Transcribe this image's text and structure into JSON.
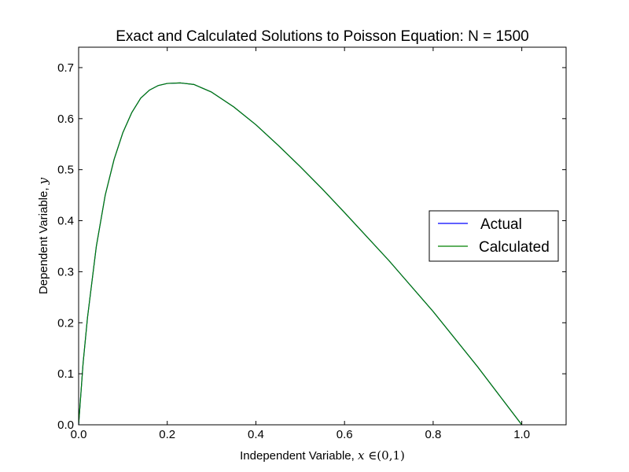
{
  "chart_data": {
    "type": "line",
    "title": "Exact and Calculated Solutions to Poisson Equation: N = 1500",
    "xlabel": {
      "text": "Independent Variable, ",
      "math_var": "x",
      "math_rest": " ∈(0,1)"
    },
    "ylabel": {
      "text": "Dependent Variable, ",
      "math_var": "y"
    },
    "xlim": [
      0.0,
      1.1
    ],
    "ylim": [
      0.0,
      0.74
    ],
    "xticks": [
      0.0,
      0.2,
      0.4,
      0.6,
      0.8,
      1.0
    ],
    "xtick_labels": [
      "0.0",
      "0.2",
      "0.4",
      "0.6",
      "0.8",
      "1.0"
    ],
    "yticks": [
      0.0,
      0.1,
      0.2,
      0.3,
      0.4,
      0.5,
      0.6,
      0.7
    ],
    "ytick_labels": [
      "0.0",
      "0.1",
      "0.2",
      "0.3",
      "0.4",
      "0.5",
      "0.6",
      "0.7"
    ],
    "grid": false,
    "legend_position": "center-right",
    "x": [
      0.0,
      0.01,
      0.02,
      0.04,
      0.06,
      0.08,
      0.1,
      0.12,
      0.14,
      0.16,
      0.18,
      0.2,
      0.23,
      0.26,
      0.3,
      0.35,
      0.4,
      0.45,
      0.5,
      0.55,
      0.6,
      0.7,
      0.8,
      0.9,
      1.0
    ],
    "series": [
      {
        "name": "Actual",
        "color": "#0000ff",
        "values": [
          0.0,
          0.12,
          0.21,
          0.35,
          0.45,
          0.52,
          0.573,
          0.612,
          0.64,
          0.656,
          0.665,
          0.669,
          0.67,
          0.667,
          0.652,
          0.623,
          0.588,
          0.548,
          0.506,
          0.462,
          0.416,
          0.322,
          0.222,
          0.114,
          0.0
        ]
      },
      {
        "name": "Calculated",
        "color": "#008000",
        "values": [
          0.0,
          0.12,
          0.21,
          0.35,
          0.45,
          0.52,
          0.573,
          0.612,
          0.64,
          0.656,
          0.665,
          0.669,
          0.67,
          0.667,
          0.652,
          0.623,
          0.588,
          0.548,
          0.506,
          0.462,
          0.416,
          0.322,
          0.222,
          0.114,
          0.0
        ]
      }
    ]
  }
}
